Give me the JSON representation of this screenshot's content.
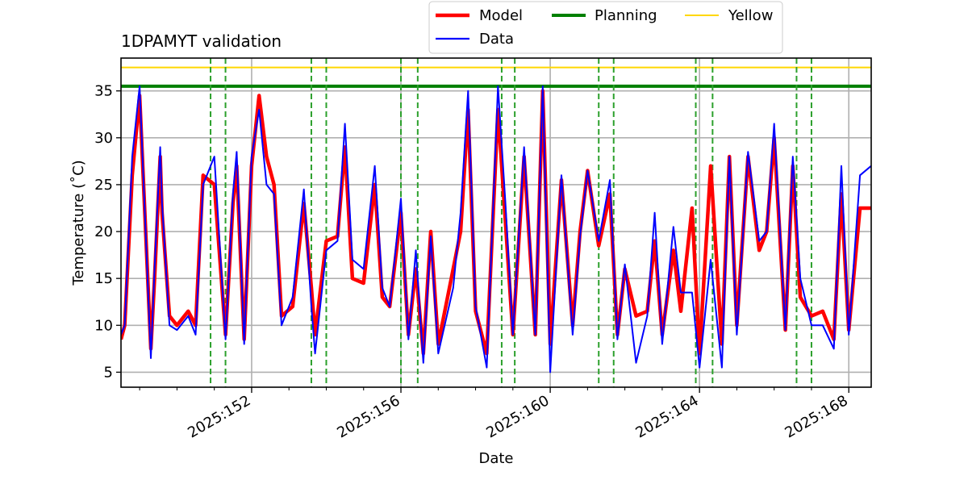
{
  "chart_data": {
    "type": "line",
    "title": "1DPAMYT validation",
    "xlabel": "Date",
    "ylabel": "Temperature ($^\\circ$C)",
    "ylabel_display": "Temperature (˚C)",
    "xlim": [
      148.5,
      168.6
    ],
    "ylim": [
      3.4,
      38.5
    ],
    "grid": true,
    "legend_position": "top-center",
    "x_ticks": [
      {
        "value": 152,
        "label": "2025:152"
      },
      {
        "value": 156,
        "label": "2025:156"
      },
      {
        "value": 160,
        "label": "2025:160"
      },
      {
        "value": 164,
        "label": "2025:164"
      },
      {
        "value": 168,
        "label": "2025:168"
      }
    ],
    "y_ticks": [
      5,
      10,
      15,
      20,
      25,
      30,
      35
    ],
    "series": [
      {
        "name": "Model",
        "color": "#ff0000",
        "x": [
          148.5,
          148.6,
          148.8,
          149.0,
          149.3,
          149.4,
          149.55,
          149.6,
          149.8,
          150.0,
          150.3,
          150.5,
          150.7,
          151.0,
          151.3,
          151.5,
          151.6,
          151.8,
          152.0,
          152.2,
          152.4,
          152.6,
          152.8,
          153.1,
          153.4,
          153.6,
          153.7,
          154.0,
          154.3,
          154.5,
          154.7,
          155.0,
          155.3,
          155.5,
          155.7,
          156.0,
          156.2,
          156.4,
          156.6,
          156.8,
          157.0,
          157.4,
          157.6,
          157.8,
          158.0,
          158.3,
          158.6,
          158.8,
          159.0,
          159.3,
          159.6,
          159.8,
          160.0,
          160.3,
          160.6,
          160.8,
          161.0,
          161.3,
          161.6,
          161.8,
          162.0,
          162.3,
          162.6,
          162.8,
          163.0,
          163.3,
          163.5,
          163.8,
          164.0,
          164.3,
          164.6,
          164.8,
          165.0,
          165.3,
          165.6,
          165.8,
          166.0,
          166.3,
          166.5,
          166.7,
          167.0,
          167.3,
          167.6,
          167.8,
          168.0,
          168.3,
          168.6
        ],
        "values": [
          8.5,
          10,
          26,
          34.5,
          7.5,
          15,
          28,
          22,
          11,
          10,
          11.5,
          10,
          26,
          25,
          9,
          23,
          27,
          8.5,
          27,
          34.5,
          28,
          25,
          11,
          12,
          23,
          14,
          9,
          19,
          19.5,
          29,
          15,
          14.5,
          25,
          13,
          12,
          22,
          9,
          16,
          7,
          20,
          8,
          16,
          20,
          33,
          11.5,
          7,
          33,
          21,
          9,
          28,
          9,
          35,
          8,
          25.5,
          10,
          20,
          26.5,
          18.5,
          24,
          9,
          16,
          11,
          11.5,
          19,
          9,
          18,
          11.5,
          22.5,
          7,
          27,
          8,
          28,
          10,
          28,
          18,
          20,
          30,
          9.5,
          27,
          13,
          11,
          11.5,
          8.5,
          24,
          9.5,
          22.5,
          22.5
        ]
      },
      {
        "name": "Data",
        "color": "#0000ff",
        "x": [
          148.5,
          148.6,
          148.8,
          149.0,
          149.3,
          149.4,
          149.55,
          149.6,
          149.8,
          150.0,
          150.3,
          150.5,
          150.7,
          151.0,
          151.3,
          151.5,
          151.6,
          151.8,
          152.0,
          152.2,
          152.4,
          152.6,
          152.8,
          153.1,
          153.4,
          153.6,
          153.7,
          154.0,
          154.3,
          154.5,
          154.7,
          155.0,
          155.3,
          155.5,
          155.7,
          156.0,
          156.2,
          156.4,
          156.6,
          156.8,
          157.0,
          157.4,
          157.6,
          157.8,
          158.0,
          158.3,
          158.6,
          158.8,
          159.0,
          159.3,
          159.6,
          159.8,
          160.0,
          160.3,
          160.6,
          160.8,
          161.0,
          161.3,
          161.6,
          161.8,
          162.0,
          162.3,
          162.6,
          162.8,
          163.0,
          163.3,
          163.5,
          163.8,
          164.0,
          164.3,
          164.6,
          164.8,
          165.0,
          165.3,
          165.6,
          165.8,
          166.0,
          166.3,
          166.5,
          166.7,
          167.0,
          167.3,
          167.6,
          167.8,
          168.0,
          168.3,
          168.6
        ],
        "values": [
          9,
          10,
          28,
          35.5,
          6.5,
          16,
          29,
          23,
          10,
          9.5,
          11,
          9,
          25,
          28,
          8.5,
          24,
          28.5,
          8,
          28,
          33,
          25,
          24,
          10,
          13,
          24.5,
          12,
          7,
          18,
          19,
          31.5,
          17,
          16,
          27,
          14,
          12,
          23.5,
          8.5,
          18,
          6,
          19.5,
          7,
          14,
          22,
          35,
          12,
          5.5,
          35.5,
          23,
          9,
          29,
          9,
          35.5,
          5,
          26,
          9,
          19.5,
          26.5,
          19,
          25.5,
          8.5,
          16.5,
          6,
          11,
          22,
          8,
          20.5,
          13.5,
          13.5,
          5.5,
          17,
          5.5,
          28,
          9,
          28.5,
          19,
          20,
          31.5,
          9.5,
          28,
          15,
          10,
          10,
          7.5,
          27,
          9,
          26,
          27
        ]
      }
    ],
    "horizontal_lines": [
      {
        "name": "Planning",
        "value": 35.5,
        "color": "#008000",
        "style": "solid"
      },
      {
        "name": "Yellow",
        "value": 37.5,
        "color": "#ffd700",
        "style": "solid"
      }
    ],
    "vertical_lines": {
      "color": "#2ca02c",
      "style": "dashed",
      "x": [
        150.9,
        151.3,
        153.6,
        154.0,
        156.0,
        156.45,
        158.7,
        159.05,
        161.3,
        161.7,
        163.9,
        164.35,
        166.6,
        167.0
      ]
    }
  }
}
